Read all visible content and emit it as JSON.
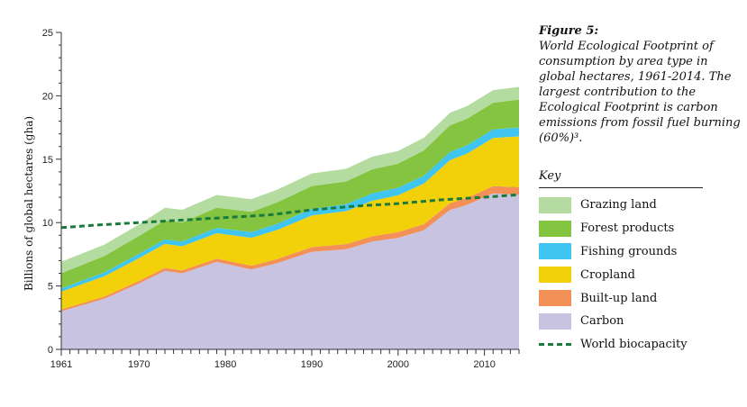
{
  "figure": {
    "number": "Figure 5:",
    "caption": "World Ecological Footprint of consumption by area type in global hectares, 1961-2014. The largest contribution to the Ecological Footprint is carbon emissions from fossil fuel burning (60%)³."
  },
  "key": {
    "title": "Key",
    "items": [
      {
        "label": "Grazing land",
        "color": "#b5dca0",
        "style": "area"
      },
      {
        "label": "Forest products",
        "color": "#84c441",
        "style": "area"
      },
      {
        "label": "Fishing grounds",
        "color": "#3fc5ef",
        "style": "area"
      },
      {
        "label": "Cropland",
        "color": "#f2d00a",
        "style": "area"
      },
      {
        "label": "Built-up land",
        "color": "#f39057",
        "style": "area"
      },
      {
        "label": "Carbon",
        "color": "#c7c3e1",
        "style": "area"
      },
      {
        "label": "World biocapacity",
        "color": "#1a7a3b",
        "style": "dashed-line"
      }
    ]
  },
  "chart_data": {
    "type": "area",
    "stacked": true,
    "ylabel": "Billions of global hectares (gha)",
    "xlabel": "",
    "xlim": [
      1961,
      2014
    ],
    "ylim": [
      0,
      25
    ],
    "x_ticks": [
      1961,
      1970,
      1980,
      1990,
      2000,
      2010
    ],
    "y_ticks": [
      0,
      5,
      10,
      15,
      20,
      25
    ],
    "grid": false,
    "x": [
      1961,
      1966,
      1970,
      1973,
      1975,
      1979,
      1983,
      1986,
      1990,
      1994,
      1997,
      2000,
      2003,
      2006,
      2008,
      2011,
      2014
    ],
    "series": [
      {
        "name": "Carbon",
        "color": "#c7c3e1",
        "values": [
          3.0,
          4.0,
          5.2,
          6.2,
          6.0,
          6.9,
          6.3,
          6.8,
          7.7,
          7.9,
          8.5,
          8.8,
          9.4,
          11.0,
          11.4,
          12.3,
          12.2
        ]
      },
      {
        "name": "Built-up land",
        "color": "#f39057",
        "values": [
          0.15,
          0.17,
          0.2,
          0.22,
          0.23,
          0.26,
          0.3,
          0.32,
          0.36,
          0.4,
          0.42,
          0.45,
          0.48,
          0.52,
          0.55,
          0.57,
          0.6
        ]
      },
      {
        "name": "Cropland",
        "color": "#f2d00a",
        "values": [
          1.4,
          1.6,
          1.8,
          1.9,
          1.9,
          2.0,
          2.2,
          2.3,
          2.5,
          2.6,
          2.8,
          2.9,
          3.2,
          3.4,
          3.5,
          3.8,
          4.0
        ]
      },
      {
        "name": "Fishing grounds",
        "color": "#3fc5ef",
        "values": [
          0.25,
          0.3,
          0.35,
          0.35,
          0.38,
          0.42,
          0.45,
          0.48,
          0.52,
          0.55,
          0.58,
          0.6,
          0.62,
          0.64,
          0.65,
          0.68,
          0.7
        ]
      },
      {
        "name": "Forest products",
        "color": "#84c441",
        "values": [
          1.2,
          1.3,
          1.4,
          1.5,
          1.5,
          1.6,
          1.6,
          1.7,
          1.8,
          1.8,
          1.9,
          1.9,
          2.0,
          2.1,
          2.1,
          2.1,
          2.2
        ]
      },
      {
        "name": "Grazing land",
        "color": "#b5dca0",
        "values": [
          0.9,
          0.9,
          0.9,
          1.0,
          1.0,
          1.0,
          1.0,
          1.0,
          1.0,
          1.0,
          1.0,
          1.0,
          1.0,
          1.0,
          1.0,
          1.0,
          1.0
        ]
      }
    ],
    "line_series": {
      "name": "World biocapacity",
      "color": "#1a7a3b",
      "dashed": true,
      "x": [
        1961,
        1965,
        1970,
        1975,
        1980,
        1985,
        1990,
        1995,
        2000,
        2005,
        2010,
        2014
      ],
      "values": [
        9.6,
        9.8,
        10.0,
        10.2,
        10.4,
        10.6,
        11.0,
        11.3,
        11.5,
        11.8,
        12.0,
        12.2
      ]
    }
  }
}
